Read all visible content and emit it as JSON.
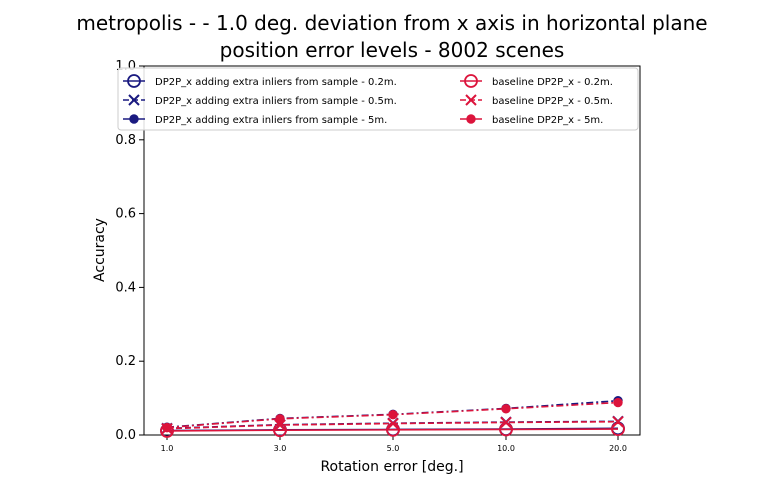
{
  "chart_data": {
    "type": "line",
    "title_line1": "metropolis -  - 1.0 deg. deviation from x axis in horizontal plane",
    "title_line2": "position error levels - 8002 scenes",
    "xlabel": "Rotation error [deg.]",
    "ylabel": "Accuracy",
    "categories": [
      "1.0",
      "3.0",
      "5.0",
      "10.0",
      "20.0"
    ],
    "ylim": [
      0,
      1.0
    ],
    "yticks": [
      "0.0",
      "0.2",
      "0.4",
      "0.6",
      "0.8",
      "1.0"
    ],
    "grid": false,
    "legend_position": "top",
    "series": [
      {
        "name": "DP2P_x adding extra inliers from sample - 0.2m.",
        "color": "#1a1a80",
        "marker": "circle-open",
        "dash": "solid",
        "values": [
          0.012,
          0.014,
          0.015,
          0.016,
          0.018
        ]
      },
      {
        "name": "DP2P_x adding extra inliers from sample - 0.5m.",
        "color": "#1a1a80",
        "marker": "x",
        "dash": "dashed",
        "values": [
          0.018,
          0.028,
          0.032,
          0.035,
          0.037
        ]
      },
      {
        "name": "DP2P_x adding extra inliers from sample - 5m.",
        "color": "#1a1a80",
        "marker": "dot",
        "dash": "dashdot",
        "values": [
          0.021,
          0.045,
          0.056,
          0.072,
          0.093
        ]
      },
      {
        "name": "baseline DP2P_x - 0.2m.",
        "color": "#dc143c",
        "marker": "circle-open",
        "dash": "solid",
        "values": [
          0.011,
          0.013,
          0.014,
          0.015,
          0.016
        ]
      },
      {
        "name": "baseline DP2P_x - 0.5m.",
        "color": "#dc143c",
        "marker": "x",
        "dash": "dashed",
        "values": [
          0.017,
          0.027,
          0.031,
          0.034,
          0.036
        ]
      },
      {
        "name": "baseline DP2P_x - 5m.",
        "color": "#dc143c",
        "marker": "dot",
        "dash": "dashdot",
        "values": [
          0.02,
          0.044,
          0.055,
          0.071,
          0.088
        ]
      }
    ]
  }
}
